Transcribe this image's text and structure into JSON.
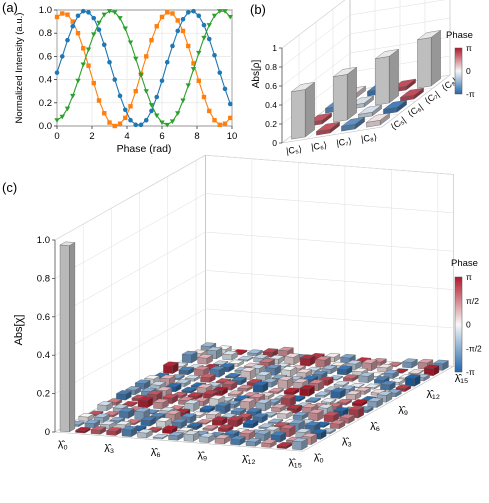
{
  "chart_data": [
    {
      "panel": "(a)",
      "type": "line",
      "xlabel": "Phase (rad)",
      "ylabel": "Normalized Intensity (a.u.)",
      "xlim": [
        0,
        10
      ],
      "ylim": [
        0,
        1.0
      ],
      "xticks": [
        "0",
        "2",
        "4",
        "6",
        "8",
        "10"
      ],
      "yticks": [
        "0.0",
        "0.2",
        "0.4",
        "0.6",
        "0.8",
        "1.0"
      ],
      "grid": true,
      "series": [
        {
          "color": "#ff7f0e",
          "marker": "square",
          "x": [
            0.0,
            0.3,
            0.6,
            0.9,
            1.2,
            1.5,
            1.8,
            2.1,
            2.4,
            2.7,
            3.0,
            3.3,
            3.6,
            3.9,
            4.2,
            4.5,
            4.8,
            5.1,
            5.4,
            5.7,
            6.0,
            6.3,
            6.6,
            6.9,
            7.2,
            7.5,
            7.8,
            8.1,
            8.4,
            8.7,
            9.0,
            9.3,
            9.6,
            9.9
          ],
          "y": [
            0.94,
            0.97,
            0.96,
            0.9,
            0.8,
            0.67,
            0.52,
            0.37,
            0.22,
            0.11,
            0.03,
            0.0,
            0.02,
            0.07,
            0.17,
            0.3,
            0.45,
            0.6,
            0.74,
            0.86,
            0.94,
            0.98,
            0.97,
            0.91,
            0.82,
            0.69,
            0.54,
            0.39,
            0.25,
            0.13,
            0.05,
            0.01,
            0.02,
            0.07
          ]
        },
        {
          "color": "#1f77b4",
          "marker": "circle",
          "x": [
            0.0,
            0.3,
            0.6,
            0.9,
            1.2,
            1.5,
            1.8,
            2.1,
            2.4,
            2.7,
            3.0,
            3.3,
            3.6,
            3.9,
            4.2,
            4.5,
            4.8,
            5.1,
            5.4,
            5.7,
            6.0,
            6.3,
            6.6,
            6.9,
            7.2,
            7.5,
            7.8,
            8.1,
            8.4,
            8.7,
            9.0,
            9.3,
            9.6,
            9.9
          ],
          "y": [
            0.46,
            0.6,
            0.74,
            0.86,
            0.95,
            0.99,
            0.98,
            0.93,
            0.83,
            0.7,
            0.55,
            0.4,
            0.26,
            0.14,
            0.05,
            0.01,
            0.01,
            0.05,
            0.13,
            0.25,
            0.39,
            0.55,
            0.69,
            0.82,
            0.92,
            0.98,
            0.99,
            0.95,
            0.87,
            0.75,
            0.61,
            0.46,
            0.32,
            0.19
          ]
        },
        {
          "color": "#2ca02c",
          "marker": "triangle-down",
          "x": [
            0.0,
            0.3,
            0.6,
            0.9,
            1.2,
            1.5,
            1.8,
            2.1,
            2.4,
            2.7,
            3.0,
            3.3,
            3.6,
            3.9,
            4.2,
            4.5,
            4.8,
            5.1,
            5.4,
            5.7,
            6.0,
            6.3,
            6.6,
            6.9,
            7.2,
            7.5,
            7.8,
            8.1,
            8.4,
            8.7,
            9.0,
            9.3,
            9.6,
            9.9
          ],
          "y": [
            0.05,
            0.08,
            0.15,
            0.26,
            0.39,
            0.53,
            0.66,
            0.79,
            0.89,
            0.96,
            0.99,
            0.98,
            0.93,
            0.84,
            0.72,
            0.58,
            0.44,
            0.3,
            0.18,
            0.09,
            0.03,
            0.01,
            0.04,
            0.11,
            0.22,
            0.35,
            0.49,
            0.63,
            0.76,
            0.87,
            0.95,
            0.99,
            0.99,
            0.94
          ]
        }
      ]
    },
    {
      "panel": "(b)",
      "type": "bar3d",
      "zlabel": "Abs[ρ]",
      "zticks": [
        "0",
        "0.2",
        "0.4",
        "0.6",
        "0.8",
        "1"
      ],
      "zlim": [
        0,
        1
      ],
      "row_labels": [
        "|C₅⟩",
        "|C₆⟩",
        "|C₇⟩",
        "|C₈⟩"
      ],
      "col_labels": [
        "⟨C₅|",
        "⟨C₆|",
        "⟨C₇|",
        "⟨C₈|"
      ],
      "abs": [
        [
          0.5,
          0.04,
          0.05,
          0.05
        ],
        [
          0.04,
          0.48,
          0.04,
          0.05
        ],
        [
          0.05,
          0.04,
          0.49,
          0.04
        ],
        [
          0.05,
          0.05,
          0.04,
          0.51
        ]
      ],
      "phase": [
        [
          0,
          2.3,
          -2.2,
          0.3
        ],
        [
          2.3,
          0,
          -0.5,
          -2.6
        ],
        [
          -2.2,
          -0.5,
          0,
          2.4
        ],
        [
          0.3,
          -2.6,
          2.4,
          0
        ]
      ],
      "colorbar": {
        "title": "Phase",
        "ticks": [
          "π",
          "0",
          "-π"
        ]
      }
    },
    {
      "panel": "(c)",
      "type": "bar3d",
      "zlabel": "Abs[χ]",
      "zticks": [
        "0",
        "0.2",
        "0.4",
        "0.6",
        "0.8",
        "1.0"
      ],
      "zlim": [
        0,
        1
      ],
      "size": 16,
      "ticks_a": [
        "λ̂₀",
        "λ̂₃",
        "λ̂₆",
        "λ̂₉",
        "λ̂₁₂",
        "λ̂₁₅"
      ],
      "ticks_b": [
        "λ̂₀",
        "λ̂₃",
        "λ̂₆",
        "λ̂₉",
        "λ̂₁₂",
        "λ̂₁₅"
      ],
      "tick_indices": [
        0,
        3,
        6,
        9,
        12,
        15
      ],
      "peak": {
        "i": 0,
        "j": 0,
        "value": 0.97
      },
      "background_max": 0.04,
      "colorbar": {
        "title": "Phase",
        "ticks": [
          "π",
          "π/2",
          "0",
          "-π/2",
          "-π"
        ]
      }
    }
  ],
  "labels": {
    "a": "(a)",
    "b": "(b)",
    "c": "(c)"
  }
}
